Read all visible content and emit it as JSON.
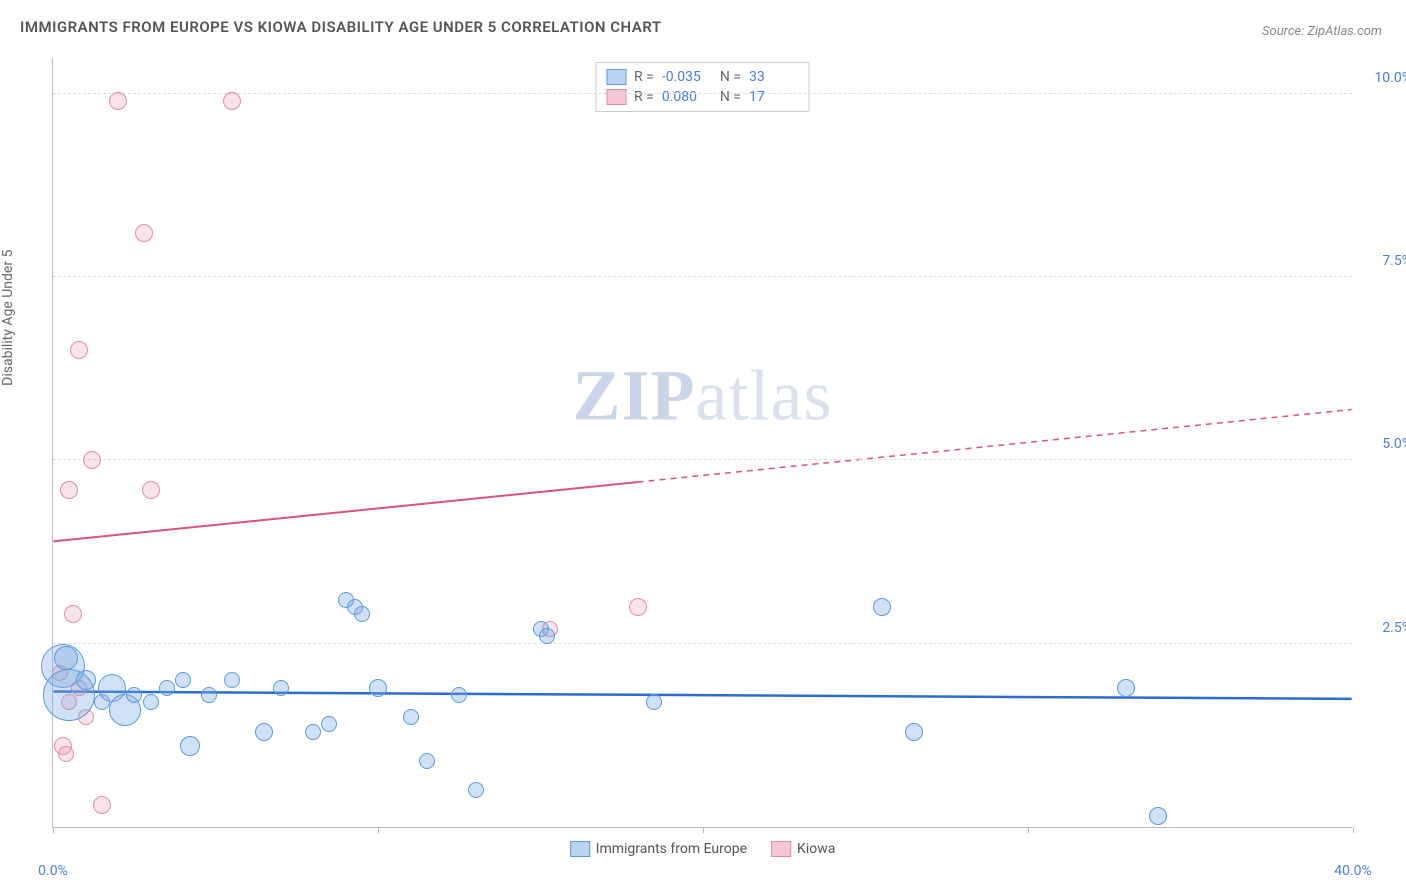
{
  "title": "IMMIGRANTS FROM EUROPE VS KIOWA DISABILITY AGE UNDER 5 CORRELATION CHART",
  "source": "Source: ZipAtlas.com",
  "y_axis_label": "Disability Age Under 5",
  "watermark": {
    "part1": "ZIP",
    "part2": "atlas"
  },
  "chart": {
    "type": "scatter",
    "xlim": [
      0,
      40
    ],
    "ylim": [
      0,
      10.5
    ],
    "x_ticks": [
      0,
      10,
      20,
      30,
      40
    ],
    "x_tick_labels": [
      "0.0%",
      "",
      "",
      "",
      "40.0%"
    ],
    "y_gridlines": [
      2.5,
      5.0,
      7.5,
      10.0
    ],
    "y_tick_labels": [
      "2.5%",
      "5.0%",
      "7.5%",
      "10.0%"
    ],
    "background_color": "#ffffff",
    "grid_color": "#dddddd",
    "axis_color": "#bbbbbb",
    "tick_label_color": "#4a7fd8"
  },
  "legend_top": [
    {
      "swatch_fill": "#b8d4f0",
      "swatch_stroke": "#5a9bd8",
      "r_label": "R =",
      "r_value": "-0.035",
      "n_label": "N =",
      "n_value": "33"
    },
    {
      "swatch_fill": "#f5c6d6",
      "swatch_stroke": "#e08ca8",
      "r_label": "R =",
      "r_value": "0.080",
      "n_label": "N =",
      "n_value": "17"
    }
  ],
  "legend_bottom": [
    {
      "swatch_fill": "#b8d4f0",
      "swatch_stroke": "#5a9bd8",
      "label": "Immigrants from Europe"
    },
    {
      "swatch_fill": "#f5c6d6",
      "swatch_stroke": "#e08ca8",
      "label": "Kiowa"
    }
  ],
  "series": {
    "europe": {
      "fill": "rgba(120,170,225,0.35)",
      "stroke": "#5a9bd8",
      "trend_color": "#2d6cd0",
      "trend_y_start": 1.85,
      "trend_y_end": 1.75,
      "trend_dash_from_x": 40,
      "points": [
        {
          "x": 0.3,
          "y": 2.2,
          "r": 22
        },
        {
          "x": 0.5,
          "y": 1.8,
          "r": 26
        },
        {
          "x": 0.4,
          "y": 2.3,
          "r": 12
        },
        {
          "x": 1.0,
          "y": 2.0,
          "r": 10
        },
        {
          "x": 1.5,
          "y": 1.7,
          "r": 8
        },
        {
          "x": 1.8,
          "y": 1.9,
          "r": 14
        },
        {
          "x": 2.2,
          "y": 1.6,
          "r": 16
        },
        {
          "x": 2.5,
          "y": 1.8,
          "r": 8
        },
        {
          "x": 3.0,
          "y": 1.7,
          "r": 8
        },
        {
          "x": 3.5,
          "y": 1.9,
          "r": 8
        },
        {
          "x": 4.0,
          "y": 2.0,
          "r": 8
        },
        {
          "x": 4.2,
          "y": 1.1,
          "r": 10
        },
        {
          "x": 4.8,
          "y": 1.8,
          "r": 8
        },
        {
          "x": 5.5,
          "y": 2.0,
          "r": 8
        },
        {
          "x": 6.5,
          "y": 1.3,
          "r": 9
        },
        {
          "x": 7.0,
          "y": 1.9,
          "r": 8
        },
        {
          "x": 8.0,
          "y": 1.3,
          "r": 8
        },
        {
          "x": 8.5,
          "y": 1.4,
          "r": 8
        },
        {
          "x": 9.0,
          "y": 3.1,
          "r": 8
        },
        {
          "x": 9.3,
          "y": 3.0,
          "r": 8
        },
        {
          "x": 9.5,
          "y": 2.9,
          "r": 8
        },
        {
          "x": 10.0,
          "y": 1.9,
          "r": 9
        },
        {
          "x": 11.0,
          "y": 1.5,
          "r": 8
        },
        {
          "x": 11.5,
          "y": 0.9,
          "r": 8
        },
        {
          "x": 12.5,
          "y": 1.8,
          "r": 8
        },
        {
          "x": 13.0,
          "y": 0.5,
          "r": 8
        },
        {
          "x": 15.0,
          "y": 2.7,
          "r": 8
        },
        {
          "x": 15.2,
          "y": 2.6,
          "r": 8
        },
        {
          "x": 18.5,
          "y": 1.7,
          "r": 8
        },
        {
          "x": 25.5,
          "y": 3.0,
          "r": 9
        },
        {
          "x": 26.5,
          "y": 1.3,
          "r": 9
        },
        {
          "x": 33.0,
          "y": 1.9,
          "r": 9
        },
        {
          "x": 34.0,
          "y": 0.15,
          "r": 9
        }
      ]
    },
    "kiowa": {
      "fill": "rgba(235,140,170,0.25)",
      "stroke": "#e08ca8",
      "trend_color": "#d9547e",
      "trend_y_start": 3.9,
      "trend_y_end": 5.7,
      "trend_dash_from_x": 18,
      "points": [
        {
          "x": 0.2,
          "y": 2.1,
          "r": 8
        },
        {
          "x": 0.3,
          "y": 1.1,
          "r": 9
        },
        {
          "x": 0.4,
          "y": 1.0,
          "r": 8
        },
        {
          "x": 0.5,
          "y": 1.7,
          "r": 8
        },
        {
          "x": 0.6,
          "y": 2.9,
          "r": 9
        },
        {
          "x": 0.5,
          "y": 4.6,
          "r": 9
        },
        {
          "x": 0.8,
          "y": 6.5,
          "r": 9
        },
        {
          "x": 1.2,
          "y": 5.0,
          "r": 9
        },
        {
          "x": 1.5,
          "y": 0.3,
          "r": 9
        },
        {
          "x": 2.0,
          "y": 9.9,
          "r": 9
        },
        {
          "x": 2.8,
          "y": 8.1,
          "r": 9
        },
        {
          "x": 3.0,
          "y": 4.6,
          "r": 9
        },
        {
          "x": 5.5,
          "y": 9.9,
          "r": 9
        },
        {
          "x": 15.3,
          "y": 2.7,
          "r": 8
        },
        {
          "x": 18.0,
          "y": 3.0,
          "r": 9
        },
        {
          "x": 0.8,
          "y": 1.9,
          "r": 8
        },
        {
          "x": 1.0,
          "y": 1.5,
          "r": 8
        }
      ]
    }
  }
}
